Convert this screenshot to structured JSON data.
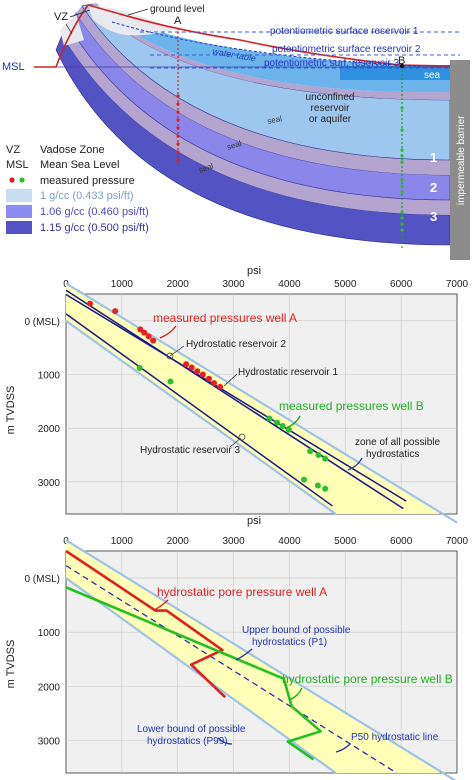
{
  "cross_section": {
    "labels": {
      "vz": "VZ",
      "ground_level": "ground level",
      "well_a": "A",
      "well_b": "B",
      "msl": "MSL",
      "water_table": "water table",
      "sea": "sea",
      "unconfined": "unconfined",
      "reservoir": "reservoir",
      "or_aquifer": "or aquifer",
      "seal": "seal",
      "impermeable_barrier": "impermeable barrier",
      "pot_res1": "potentiometric surface reservoir 1",
      "pot_res2": "potentiometric surface reservoir 2",
      "pot_res3": "potentiometric surf.  reservoir 3",
      "res1": "1",
      "res2": "2",
      "res3": "3"
    },
    "legend": {
      "vz_abbr": "VZ",
      "vz_text": "Vadose Zone",
      "msl_abbr": "MSL",
      "msl_text": "Mean Sea Level",
      "measured_pressure": "measured pressure",
      "density_1": "1 g/cc (0.433 psi/ft)",
      "density_2": "1.06 g/cc (0.460 psi/ft)",
      "density_3": "1.15 g/cc (0.500 psi/ft)",
      "colors": {
        "d1": "#c9def3",
        "d2": "#8a8cf0",
        "d3": "#5252c8"
      }
    }
  },
  "chart_top": {
    "type": "line",
    "xlabel": "psi",
    "ylabel": "m TVDSS",
    "x_ticks": [
      "0",
      "1000",
      "2000",
      "3000",
      "4000",
      "5000",
      "6000",
      "7000"
    ],
    "y_ticks": [
      "0 (MSL)",
      "1000",
      "2000",
      "3000"
    ],
    "xlim": [
      0,
      7000
    ],
    "ylim": [
      -500,
      3600
    ],
    "annotations": {
      "measured_a": "measured pressures well A",
      "hydro_res2": "Hydrostatic reservoir 2",
      "hydro_res1": "Hydrostatic reservoir 1",
      "measured_b": "measured pressures well B",
      "hydro_res3": "Hydrostatic reservoir 3",
      "zone1": "zone of all possible",
      "zone2": "hydrostatics"
    },
    "chart_data": {
      "series": [
        {
          "name": "measured pressures well A",
          "color": "#e82020",
          "x": [
            430,
            880,
            1330,
            1400,
            1480,
            1560,
            2150,
            2250,
            2350,
            2450,
            2560,
            2650,
            2760
          ],
          "y": [
            -320,
            -180,
            160,
            220,
            290,
            370,
            810,
            870,
            940,
            1000,
            1080,
            1160,
            1230
          ]
        },
        {
          "name": "measured pressures well B",
          "color": "#2cc02c",
          "x": [
            1320,
            1870,
            3640,
            3780,
            3880,
            3990,
            4370,
            4520,
            4640,
            4260,
            4510,
            4640
          ],
          "y": [
            880,
            1130,
            1820,
            1900,
            1960,
            2030,
            2430,
            2500,
            2570,
            2960,
            3070,
            3130
          ]
        },
        {
          "name": "Hydrostatic reservoir 1",
          "x": [
            0,
            6090
          ],
          "y": [
            -490,
            3360
          ]
        },
        {
          "name": "Hydrostatic reservoir 2",
          "x": [
            0,
            6040
          ],
          "y": [
            -570,
            3500
          ]
        },
        {
          "name": "Hydrostatic reservoir 3",
          "x": [
            0,
            4770
          ],
          "y": [
            -130,
            3450
          ]
        }
      ]
    }
  },
  "chart_bottom": {
    "type": "line",
    "xlabel": "psi",
    "ylabel": "m TVDSS",
    "x_ticks": [
      "0",
      "1000",
      "2000",
      "3000",
      "4000",
      "5000",
      "6000",
      "7000"
    ],
    "y_ticks": [
      "0 (MSL)",
      "1000",
      "2000",
      "3000"
    ],
    "xlim": [
      0,
      7000
    ],
    "ylim": [
      -500,
      3600
    ],
    "annotations": {
      "well_a": "hydrostatic pore pressure well A",
      "upper1": "Upper bound of possible",
      "upper2": "hydrostatics (P1)",
      "well_b": "hydrostatic pore pressure well B",
      "lower1": "Lower bound of possible",
      "lower2": "hydrostatics (P99)",
      "p50": "P50 hydrostatic line"
    },
    "chart_data": {
      "series": [
        {
          "name": "hydrostatic pore pressure well A",
          "color": "#e02020",
          "x": [
            0,
            1600,
            1800,
            2800,
            2240,
            2850
          ],
          "y": [
            -500,
            600,
            600,
            1330,
            1600,
            2200
          ]
        },
        {
          "name": "hydrostatic pore pressure well B",
          "color": "#22c022",
          "x": [
            0,
            3900,
            4040,
            4560,
            3970,
            4430
          ],
          "y": [
            170,
            1860,
            2370,
            2830,
            3020,
            3350
          ]
        },
        {
          "name": "P50 hydrostatic line",
          "x": [
            0,
            5920
          ],
          "y": [
            -230,
            3600
          ]
        }
      ]
    }
  }
}
